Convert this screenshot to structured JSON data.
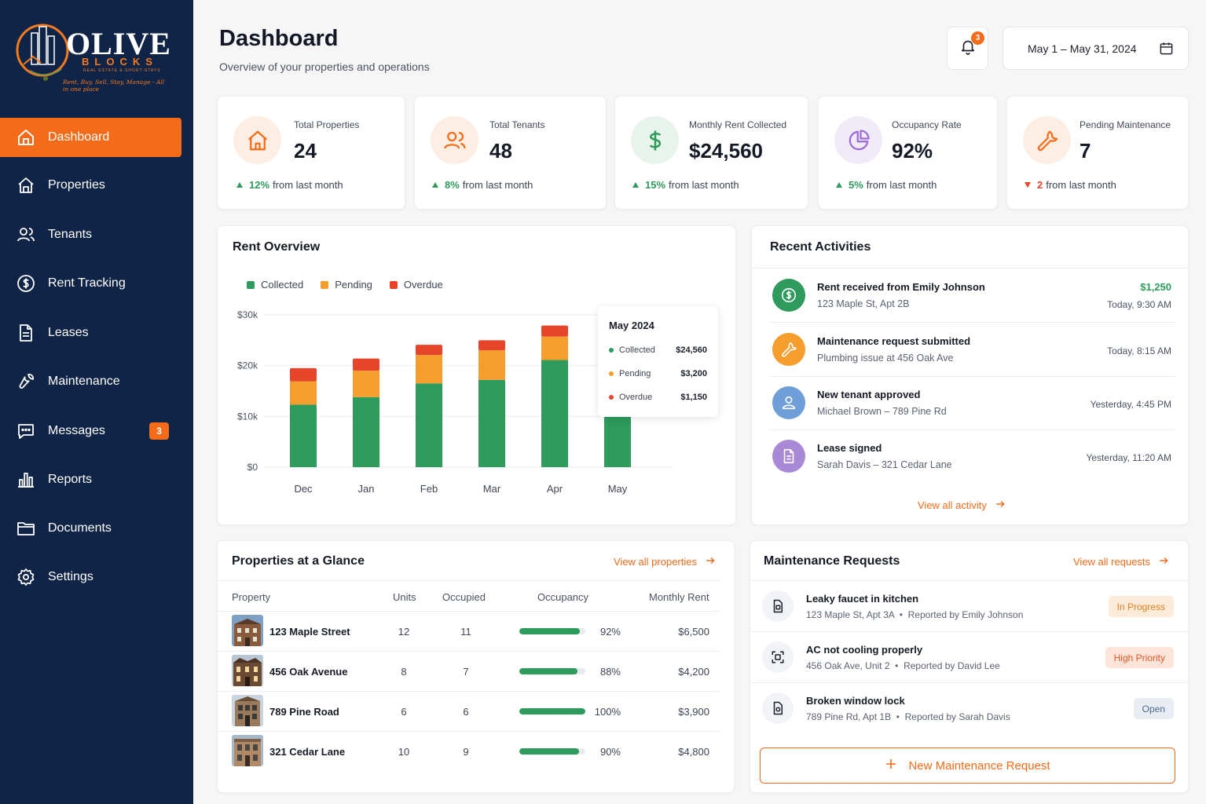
{
  "brand": {
    "name": "OLIVE",
    "sub": "BLOCKS",
    "tagline": "REAL ESTATE & SHORT-STAYS",
    "script": "Rent, Buy, Sell, Stay, Manage - All in one place"
  },
  "sidebar": {
    "items": [
      {
        "label": "Dashboard",
        "icon": "home-icon",
        "active": true
      },
      {
        "label": "Properties",
        "icon": "home-outline-icon"
      },
      {
        "label": "Tenants",
        "icon": "users-icon"
      },
      {
        "label": "Rent Tracking",
        "icon": "dollar-circle-icon"
      },
      {
        "label": "Leases",
        "icon": "document-icon"
      },
      {
        "label": "Maintenance",
        "icon": "wrench-icon"
      },
      {
        "label": "Messages",
        "icon": "message-icon",
        "badge": "3"
      },
      {
        "label": "Reports",
        "icon": "bar-chart-icon"
      },
      {
        "label": "Documents",
        "icon": "folder-icon"
      },
      {
        "label": "Settings",
        "icon": "gear-icon"
      }
    ]
  },
  "header": {
    "title": "Dashboard",
    "subtitle": "Overview of your properties and operations",
    "notifications": "3",
    "date_range": "May 1 – May 31, 2024"
  },
  "stats": [
    {
      "label": "Total Properties",
      "value": "24",
      "change": "12%",
      "change_text": "from last month",
      "direction": "up",
      "icon": "house-icon",
      "color": "#f46b1a"
    },
    {
      "label": "Total Tenants",
      "value": "48",
      "change": "8%",
      "change_text": "from last month",
      "direction": "up",
      "icon": "users-icon",
      "color": "#f46b1a"
    },
    {
      "label": "Monthly Rent Collected",
      "value": "$24,560",
      "change": "15%",
      "change_text": "from last month",
      "direction": "up",
      "icon": "dollar-icon",
      "color": "#2e9a5c"
    },
    {
      "label": "Occupancy Rate",
      "value": "92%",
      "change": "5%",
      "change_text": "from last month",
      "direction": "up",
      "icon": "pie-icon",
      "color": "#9b6ad6"
    },
    {
      "label": "Pending Maintenance",
      "value": "7",
      "change": "2",
      "change_text": "from last month",
      "direction": "down",
      "icon": "wrench-icon",
      "color": "#f46b1a"
    }
  ],
  "rent_overview": {
    "title": "Rent Overview",
    "tooltip": {
      "title": "May 2024",
      "rows": [
        {
          "label": "Collected",
          "value": "$24,560",
          "color": "#2e9a5c"
        },
        {
          "label": "Pending",
          "value": "$3,200",
          "color": "#f59e2e"
        },
        {
          "label": "Overdue",
          "value": "$1,150",
          "color": "#e6452a"
        }
      ]
    }
  },
  "chart_data": {
    "type": "bar",
    "stacked": true,
    "title": "Rent Overview",
    "categories": [
      "Dec",
      "Jan",
      "Feb",
      "Mar",
      "Apr",
      "May"
    ],
    "series": [
      {
        "name": "Collected",
        "color": "#2e9a5c",
        "values": [
          12300,
          13800,
          16500,
          17200,
          21100,
          24560
        ]
      },
      {
        "name": "Pending",
        "color": "#f59e2e",
        "values": [
          4600,
          5200,
          5600,
          5800,
          4600,
          3200
        ]
      },
      {
        "name": "Overdue",
        "color": "#e6452a",
        "values": [
          2600,
          2400,
          2000,
          2000,
          2200,
          1150
        ]
      }
    ],
    "yticks": [
      "$0",
      "$10k",
      "$20k",
      "$30k"
    ],
    "ylim": [
      0,
      30000
    ],
    "legend": "top-left",
    "grid": true
  },
  "activities": {
    "title": "Recent Activities",
    "items": [
      {
        "title": "Rent received from Emily Johnson",
        "sub": "123 Maple St, Apt 2B",
        "amount": "$1,250",
        "time": "Today, 9:30 AM",
        "icon": "dollar-circle-icon",
        "color": "#2e9a5c"
      },
      {
        "title": "Maintenance request submitted",
        "sub": "Plumbing issue at 456 Oak Ave",
        "amount": "",
        "time": "Today, 8:15 AM",
        "icon": "wrench-icon",
        "color": "#f59e2e"
      },
      {
        "title": "New tenant approved",
        "sub": "Michael Brown – 789 Pine Rd",
        "amount": "",
        "time": "Yesterday, 4:45 PM",
        "icon": "user-icon",
        "color": "#6f9fd8"
      },
      {
        "title": "Lease signed",
        "sub": "Sarah Davis – 321 Cedar Lane",
        "amount": "",
        "time": "Yesterday, 11:20 AM",
        "icon": "document-icon",
        "color": "#a989d6"
      }
    ],
    "view_all": "View all activity"
  },
  "properties": {
    "title": "Properties at a Glance",
    "view_all": "View all properties",
    "columns": [
      "Property",
      "Units",
      "Occupied",
      "Occupancy",
      "Monthly Rent"
    ],
    "rows": [
      {
        "name": "123 Maple Street",
        "units": "12",
        "occupied": "11",
        "occupancy": "92%",
        "occupancy_value": 0.92,
        "rent": "$6,500"
      },
      {
        "name": "456 Oak Avenue",
        "units": "8",
        "occupied": "7",
        "occupancy": "88%",
        "occupancy_value": 0.88,
        "rent": "$4,200"
      },
      {
        "name": "789 Pine Road",
        "units": "6",
        "occupied": "6",
        "occupancy": "100%",
        "occupancy_value": 1.0,
        "rent": "$3,900"
      },
      {
        "name": "321 Cedar Lane",
        "units": "10",
        "occupied": "9",
        "occupancy": "90%",
        "occupancy_value": 0.9,
        "rent": "$4,800"
      }
    ]
  },
  "maintenance": {
    "title": "Maintenance Requests",
    "view_all": "View all requests",
    "items": [
      {
        "title": "Leaky faucet in kitchen",
        "location": "123 Maple St, Apt 3A",
        "reporter": "Reported by Emily Johnson",
        "status": "In Progress",
        "status_bg": "#fdebd9",
        "status_color": "#e0801e",
        "icon": "faucet-icon"
      },
      {
        "title": "AC not cooling properly",
        "location": "456 Oak Ave, Unit 2",
        "reporter": "Reported by David Lee",
        "status": "High Priority",
        "status_bg": "#fde4d8",
        "status_color": "#e0562a",
        "icon": "ac-icon"
      },
      {
        "title": "Broken window lock",
        "location": "789 Pine Rd, Apt 1B",
        "reporter": "Reported by Sarah Davis",
        "status": "Open",
        "status_bg": "#e8edf3",
        "status_color": "#4a6a8e",
        "icon": "lock-icon"
      }
    ],
    "new_button": "New Maintenance Request"
  }
}
